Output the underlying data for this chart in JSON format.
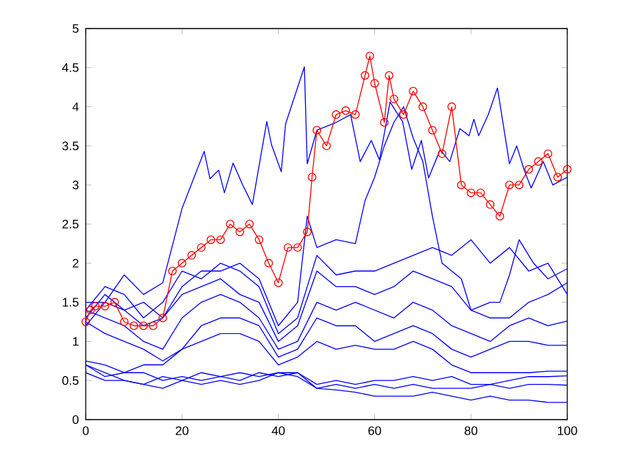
{
  "chart_data": {
    "type": "line",
    "xlim": [
      0,
      100
    ],
    "ylim": [
      0,
      5
    ],
    "xticks": [
      0,
      20,
      40,
      60,
      80,
      100
    ],
    "yticks": [
      0,
      0.5,
      1,
      1.5,
      2,
      2.5,
      3,
      3.5,
      4,
      4.5,
      5
    ],
    "marker": "none",
    "x": [
      0,
      4,
      8,
      12,
      16,
      20,
      24,
      28,
      32,
      36,
      40,
      44,
      48,
      52,
      56,
      60,
      64,
      68,
      72,
      76,
      80,
      84,
      88,
      92,
      96,
      100
    ],
    "series": [
      {
        "color": "#0000ff",
        "x": [
          0,
          4,
          8,
          12,
          16,
          20,
          24.6,
          25.8,
          27.6,
          28.8,
          30.6,
          32.6,
          34.6,
          37.6,
          38.6,
          40.6,
          41.5,
          43,
          45.4,
          46,
          48,
          52,
          55,
          57,
          59.3,
          61,
          63.2,
          65.8,
          67.7,
          69.7,
          71.2,
          73.6,
          75.6,
          77.7,
          79.6,
          80.6,
          81.6,
          83.6,
          85.5,
          88,
          89.5,
          91,
          92.5,
          95,
          97,
          100
        ],
        "values": [
          1.2,
          1.5,
          1.85,
          1.6,
          1.75,
          2.7,
          3.43,
          3.08,
          3.19,
          2.9,
          3.28,
          3.0,
          2.75,
          3.81,
          3.51,
          3.17,
          3.78,
          4.06,
          4.51,
          3.27,
          3.7,
          3.8,
          3.9,
          3.3,
          3.57,
          3.32,
          4.06,
          3.81,
          3.2,
          3.57,
          3.09,
          3.45,
          3.3,
          3.72,
          3.63,
          3.84,
          3.63,
          3.9,
          4.24,
          3.27,
          3.5,
          3.2,
          2.96,
          3.3,
          3.0,
          3.1
        ]
      },
      {
        "color": "#0000ff",
        "x": [
          0,
          4,
          8,
          12,
          16,
          20,
          24,
          28,
          32,
          36,
          40,
          44,
          46,
          48,
          52,
          56,
          58,
          60,
          62,
          64,
          66,
          68,
          70,
          72,
          74,
          76,
          78,
          80,
          82,
          84,
          86,
          88,
          90,
          93,
          96,
          100
        ],
        "values": [
          1.3,
          1.6,
          1.4,
          1.5,
          1.3,
          1.7,
          1.9,
          1.9,
          2.0,
          1.8,
          1.2,
          1.5,
          2.6,
          2.2,
          2.3,
          2.25,
          2.8,
          3.1,
          3.5,
          3.8,
          4.0,
          3.6,
          3.3,
          2.6,
          2.0,
          1.9,
          1.8,
          1.4,
          1.45,
          1.5,
          1.5,
          1.85,
          2.3,
          2.0,
          1.8,
          1.93
        ]
      },
      {
        "color": "#0000ff",
        "values": [
          1.4,
          1.7,
          1.6,
          1.3,
          1.5,
          1.9,
          1.8,
          2.0,
          1.9,
          1.7,
          1.1,
          1.3,
          2.1,
          1.85,
          1.9,
          1.9,
          2.0,
          2.1,
          2.2,
          2.1,
          2.3,
          2.0,
          2.2,
          1.9,
          2.0,
          1.6
        ]
      },
      {
        "color": "#0000ff",
        "values": [
          1.5,
          1.5,
          1.4,
          1.2,
          1.3,
          1.6,
          1.7,
          1.8,
          1.6,
          1.5,
          1.0,
          1.2,
          1.9,
          1.7,
          1.7,
          1.6,
          1.7,
          1.9,
          1.8,
          1.7,
          1.4,
          1.3,
          1.3,
          1.5,
          1.6,
          1.75
        ]
      },
      {
        "color": "#0000ff",
        "values": [
          1.4,
          1.3,
          1.2,
          1.0,
          0.9,
          1.3,
          1.5,
          1.6,
          1.5,
          1.3,
          0.9,
          1.0,
          1.5,
          1.4,
          1.5,
          1.4,
          1.3,
          1.5,
          1.4,
          1.2,
          1.1,
          1.0,
          1.2,
          1.3,
          1.2,
          1.26
        ]
      },
      {
        "color": "#0000ff",
        "values": [
          1.25,
          1.1,
          1.0,
          0.9,
          0.75,
          0.9,
          1.2,
          1.3,
          1.3,
          1.2,
          0.8,
          0.9,
          1.3,
          1.2,
          1.2,
          1.0,
          1.1,
          1.2,
          1.1,
          0.9,
          0.8,
          0.9,
          1.0,
          1.0,
          0.95,
          0.95
        ]
      },
      {
        "color": "#0000ff",
        "values": [
          0.75,
          0.7,
          0.6,
          0.7,
          0.7,
          0.9,
          1.0,
          1.1,
          1.1,
          1.0,
          0.7,
          0.8,
          1.0,
          0.9,
          0.95,
          0.9,
          0.9,
          1.0,
          0.9,
          0.7,
          0.6,
          0.6,
          0.6,
          0.6,
          0.62,
          0.62
        ]
      },
      {
        "color": "#0000ff",
        "values": [
          0.7,
          0.55,
          0.6,
          0.6,
          0.5,
          0.55,
          0.5,
          0.55,
          0.5,
          0.6,
          0.55,
          0.6,
          0.45,
          0.5,
          0.45,
          0.5,
          0.5,
          0.55,
          0.5,
          0.55,
          0.45,
          0.45,
          0.5,
          0.55,
          0.55,
          0.56
        ]
      },
      {
        "color": "#0000ff",
        "values": [
          0.6,
          0.5,
          0.5,
          0.45,
          0.55,
          0.5,
          0.6,
          0.55,
          0.6,
          0.55,
          0.6,
          0.55,
          0.4,
          0.45,
          0.4,
          0.45,
          0.4,
          0.45,
          0.4,
          0.4,
          0.4,
          0.45,
          0.4,
          0.45,
          0.45,
          0.44
        ]
      },
      {
        "color": "#0000ff",
        "values": [
          0.7,
          0.6,
          0.5,
          0.45,
          0.4,
          0.5,
          0.45,
          0.5,
          0.45,
          0.5,
          0.6,
          0.6,
          0.4,
          0.38,
          0.35,
          0.3,
          0.3,
          0.3,
          0.35,
          0.3,
          0.25,
          0.3,
          0.25,
          0.25,
          0.22,
          0.22
        ]
      },
      {
        "color": "#ff0000",
        "marker": "circle",
        "x": [
          0,
          1,
          2,
          4,
          6,
          8,
          10,
          12,
          14,
          16,
          18,
          20,
          22,
          24,
          26,
          28,
          30,
          32,
          34,
          36,
          38,
          40,
          42,
          44,
          46,
          47,
          48,
          50,
          52,
          54,
          56,
          58,
          59,
          60,
          62,
          63,
          64,
          66,
          68,
          70,
          72,
          74,
          76,
          78,
          80,
          82,
          84,
          86,
          88,
          90,
          92,
          94,
          96,
          98,
          100
        ],
        "values": [
          1.25,
          1.4,
          1.45,
          1.45,
          1.5,
          1.25,
          1.2,
          1.2,
          1.2,
          1.3,
          1.9,
          2.0,
          2.1,
          2.2,
          2.3,
          2.3,
          2.5,
          2.4,
          2.5,
          2.3,
          2.0,
          1.75,
          2.2,
          2.2,
          2.4,
          3.1,
          3.7,
          3.5,
          3.9,
          3.95,
          3.9,
          4.4,
          4.65,
          4.3,
          3.8,
          4.4,
          4.1,
          3.9,
          4.2,
          4.0,
          3.7,
          3.4,
          4.0,
          3.0,
          2.9,
          2.9,
          2.75,
          2.6,
          3.0,
          3.0,
          3.2,
          3.3,
          3.4,
          3.1,
          3.2
        ]
      }
    ]
  }
}
